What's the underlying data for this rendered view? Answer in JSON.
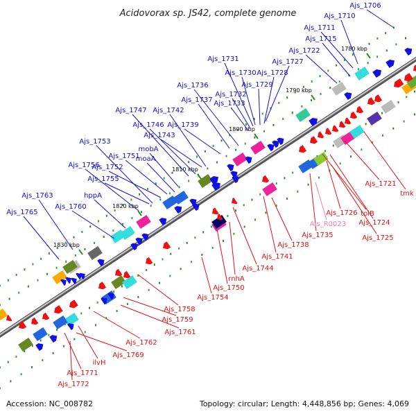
{
  "title": "Acidovorax sp. JS42, complete genome",
  "accession": "Accession: NC_008782",
  "summary": "Topology: circular; Length: 4,448,856 bp; Genes: 4,069",
  "colors": {
    "top_label": "#1010c8",
    "bottom_label": "#e01010",
    "rna_label": "#f080b0",
    "backbone": "#888888"
  },
  "kbp_marks": [
    "1780 kbp",
    "1790 kbp",
    "1800 kbp",
    "1810 kbp",
    "1820 kbp",
    "1830 kbp"
  ],
  "top_labels": [
    "Ajs_1706",
    "Ajs_1710",
    "Ajs_1711",
    "Ajs_1715",
    "Ajs_1722",
    "Ajs_1727",
    "Ajs_1728",
    "Ajs_1729",
    "Ajs_1730",
    "Ajs_1731",
    "Ajs_1732",
    "Ajs_1733",
    "Ajs_1736",
    "Ajs_1737",
    "Ajs_1739",
    "Ajs_1742",
    "Ajs_1743",
    "Ajs_1746",
    "Ajs_1747",
    "mobA",
    "moaA",
    "Ajs_1751",
    "Ajs_1752",
    "Ajs_1753",
    "Ajs_1755",
    "Ajs_1756",
    "hppA",
    "Ajs_1760",
    "Ajs_1763",
    "Ajs_1765"
  ],
  "bottom_labels": [
    "tmk",
    "Ajs_1721",
    "tolB",
    "Ajs_1724",
    "Ajs_1725",
    "Ajs_1726",
    "Ajs_R0023",
    "Ajs_1735",
    "Ajs_1738",
    "Ajs_1741",
    "Ajs_1744",
    "rnhA",
    "Ajs_1750",
    "Ajs_1754",
    "Ajs_1758",
    "Ajs_1759",
    "Ajs_1761",
    "Ajs_1762",
    "Ajs_1769",
    "ilvH",
    "Ajs_1771",
    "Ajs_1772"
  ]
}
